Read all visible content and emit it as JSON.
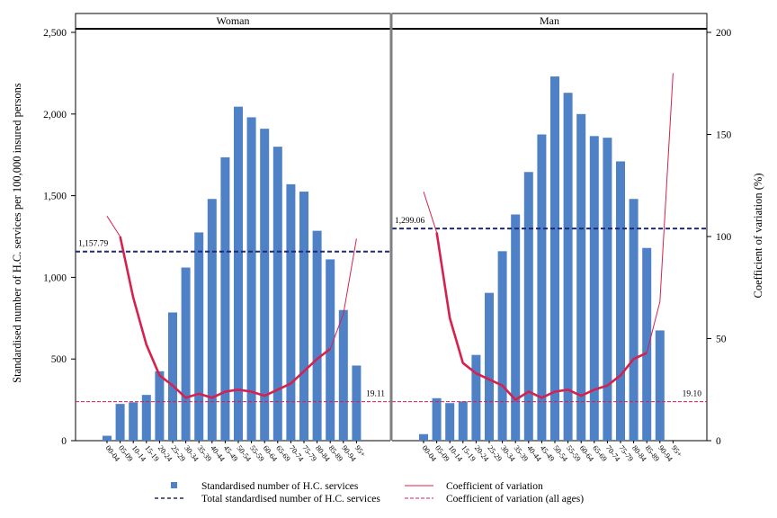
{
  "chart_data": {
    "type": "bar",
    "colors": {
      "bar": "#4f81c7",
      "cv": "#d6214f",
      "total_line": "#1f2a7a",
      "cv_all_line": "#d6214f"
    },
    "y_left_label": "Standardised number of H.C. services per 100,000 insured persons",
    "y_right_label": "Coefficient of variation (%)",
    "y_left_lim": [
      0,
      2500
    ],
    "y_left_ticks": [
      "0",
      "500",
      "1,000",
      "1,500",
      "2,000",
      "2,500"
    ],
    "y_left_tick_values": [
      0,
      500,
      1000,
      1500,
      2000,
      2500
    ],
    "y_right_lim": [
      0,
      200
    ],
    "y_right_ticks": [
      "0",
      "50",
      "100",
      "150",
      "200"
    ],
    "y_right_tick_values": [
      0,
      50,
      100,
      150,
      200
    ],
    "categories": [
      "00-04",
      "05-09",
      "10-14",
      "15-19",
      "20-24",
      "25-29",
      "30-34",
      "35-39",
      "40-44",
      "45-49",
      "50-54",
      "55-59",
      "60-64",
      "65-69",
      "70-74",
      "75-79",
      "80-84",
      "85-89",
      "90-94",
      "95+"
    ],
    "panels": [
      {
        "title": "Woman",
        "services": [
          30,
          225,
          235,
          280,
          425,
          785,
          1060,
          1275,
          1480,
          1735,
          2045,
          1980,
          1910,
          1800,
          1570,
          1525,
          1285,
          1110,
          800,
          460
        ],
        "cv": [
          110,
          100,
          70,
          47,
          32,
          27,
          21,
          23,
          21,
          24,
          25,
          24,
          22,
          25,
          28,
          34,
          40,
          45,
          62,
          99
        ],
        "total_services": 1157.79,
        "total_label": "1,157.79",
        "cv_all": 19.11,
        "cv_all_label": "19.11"
      },
      {
        "title": "Man",
        "services": [
          40,
          260,
          230,
          240,
          525,
          905,
          1160,
          1385,
          1645,
          1875,
          2230,
          2130,
          2000,
          1865,
          1855,
          1710,
          1480,
          1180,
          675,
          0
        ],
        "cv": [
          122,
          102,
          60,
          38,
          33,
          30,
          27,
          20,
          24,
          21,
          24,
          25,
          22,
          25,
          27,
          32,
          40,
          43,
          68,
          180
        ],
        "total_services": 1299.06,
        "total_label": "1,299.06",
        "cv_all": 19.1,
        "cv_all_label": "19.10"
      }
    ],
    "legend": [
      {
        "key": "services",
        "label": "Standardised number of H.C. services",
        "symbol": "square"
      },
      {
        "key": "cv",
        "label": "Coefficient of variation",
        "symbol": "line"
      },
      {
        "key": "total",
        "label": "Total standardised number of H.C. services",
        "symbol": "dash-navy"
      },
      {
        "key": "cv_all",
        "label": "Coefficient of variation (all ages)",
        "symbol": "dash-red"
      }
    ],
    "legend_position": "bottom"
  }
}
